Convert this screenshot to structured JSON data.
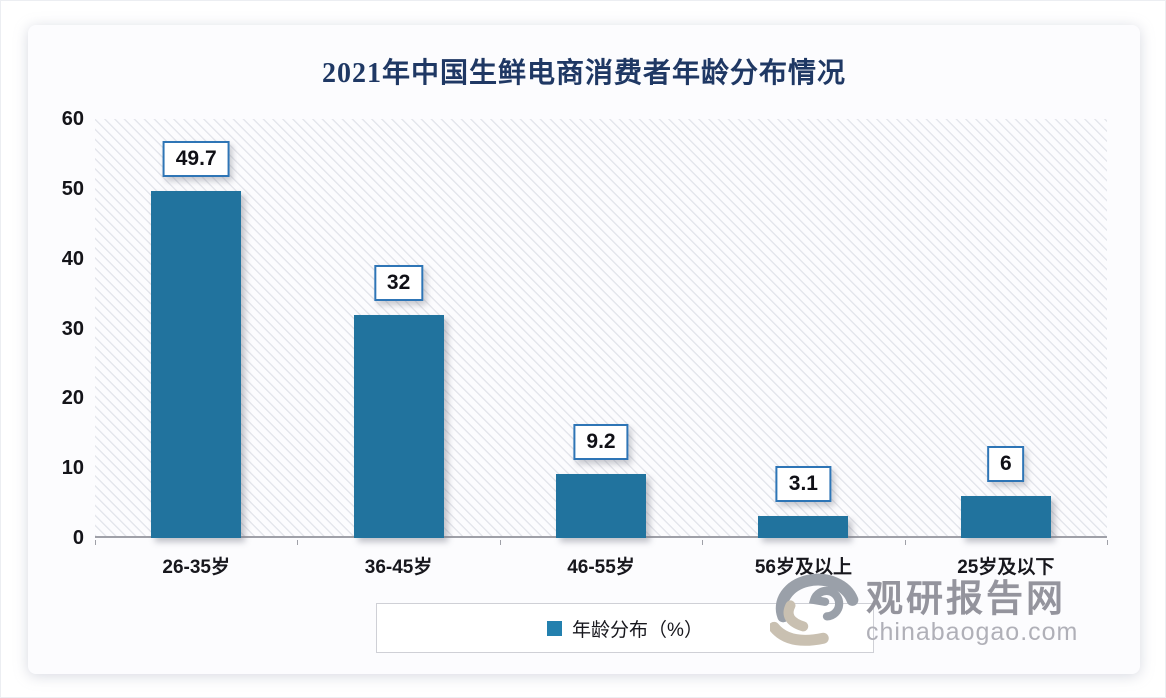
{
  "chart_data": {
    "type": "bar",
    "title": "2021年中国生鲜电商消费者年龄分布情况",
    "categories": [
      "26-35岁",
      "36-45岁",
      "46-55岁",
      "56岁及以上",
      "25岁及以下"
    ],
    "values": [
      49.7,
      32,
      9.2,
      3.1,
      6
    ],
    "value_labels": [
      "49.7",
      "32",
      "9.2",
      "3.1",
      "6"
    ],
    "series_name": "年龄分布（%）",
    "xlabel": "",
    "ylabel": "",
    "ylim": [
      0,
      60
    ],
    "yticks": [
      0,
      10,
      20,
      30,
      40,
      50,
      60
    ],
    "grid": false,
    "legend_position": "bottom",
    "colors": {
      "bar": "#21739E",
      "title": "#1F3864",
      "data_label_border": "#2E75B6",
      "legend_marker": "#2380AE",
      "axis_line": "#9FA0A8"
    }
  },
  "legend": {
    "label": "年龄分布（%）"
  },
  "watermark": {
    "site_name": "观研报告网",
    "site_url": "chinabaogao.com"
  }
}
